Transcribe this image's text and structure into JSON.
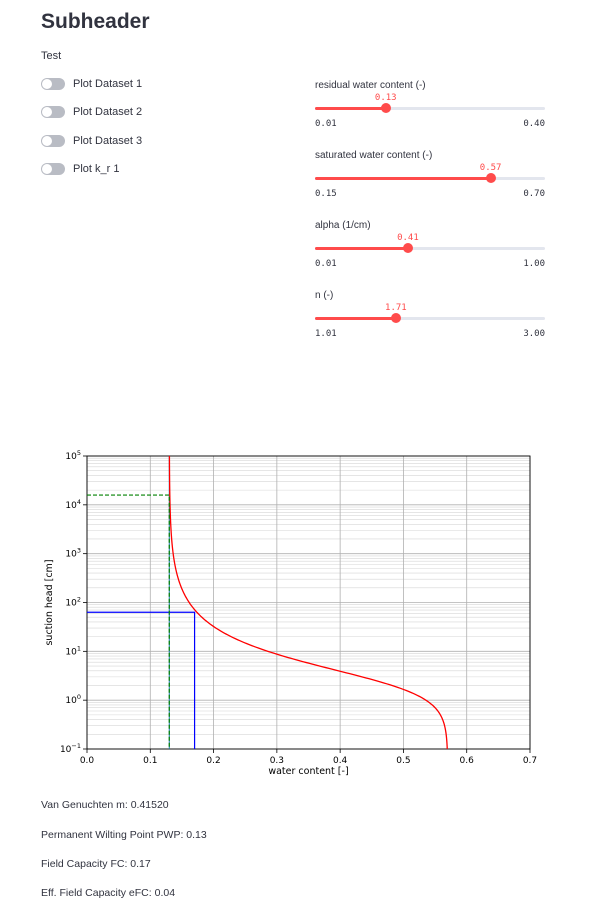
{
  "page": {
    "subheader": "Subheader",
    "caption": "Test"
  },
  "toggles": [
    {
      "label": "Plot Dataset 1",
      "on": false
    },
    {
      "label": "Plot Dataset 2",
      "on": false
    },
    {
      "label": "Plot Dataset 3",
      "on": false
    },
    {
      "label": "Plot k_r 1",
      "on": false
    }
  ],
  "sliders": [
    {
      "label": "residual water content (-)",
      "value": 0.13,
      "value_text": "0.13",
      "min": 0.01,
      "max": 0.4,
      "min_text": "0.01",
      "max_text": "0.40"
    },
    {
      "label": "saturated water content (-)",
      "value": 0.57,
      "value_text": "0.57",
      "min": 0.15,
      "max": 0.7,
      "min_text": "0.15",
      "max_text": "0.70"
    },
    {
      "label": "alpha (1/cm)",
      "value": 0.41,
      "value_text": "0.41",
      "min": 0.01,
      "max": 1.0,
      "min_text": "0.01",
      "max_text": "1.00"
    },
    {
      "label": "n (-)",
      "value": 1.71,
      "value_text": "1.71",
      "min": 1.01,
      "max": 3.0,
      "min_text": "1.01",
      "max_text": "3.00"
    }
  ],
  "chart_data": {
    "type": "line",
    "xlabel": "water content [-]",
    "ylabel": "suction head [cm]",
    "xlim": [
      0.0,
      0.7
    ],
    "ylim": [
      0.1,
      100000
    ],
    "yscale": "log",
    "grid": true,
    "x_ticks": [
      "0.0",
      "0.1",
      "0.2",
      "0.3",
      "0.4",
      "0.5",
      "0.6",
      "0.7"
    ],
    "y_ticks": [
      {
        "base": "10",
        "exp": "−1"
      },
      {
        "base": "10",
        "exp": "0"
      },
      {
        "base": "10",
        "exp": "1"
      },
      {
        "base": "10",
        "exp": "2"
      },
      {
        "base": "10",
        "exp": "3"
      },
      {
        "base": "10",
        "exp": "4"
      },
      {
        "base": "10",
        "exp": "5"
      }
    ],
    "series": [
      {
        "curve": "van-genuchten",
        "color": "#ff0000",
        "theta_r": 0.13,
        "theta_s": 0.57,
        "alpha": 0.41,
        "n": 1.71
      },
      {
        "curve": "field-capacity-marker",
        "color": "#0000ff",
        "x": 0.17,
        "h": 63.1
      },
      {
        "curve": "wilting-point-marker",
        "color": "#008000",
        "x": 0.13,
        "h": 15849
      }
    ],
    "residual_line": {
      "x": 0.13,
      "color": "#1f77b4"
    }
  },
  "results": {
    "m": "Van Genuchten m: 0.41520",
    "pwp": "Permanent Wilting Point PWP: 0.13",
    "fc": "Field Capacity FC: 0.17",
    "efc": "Eff. Field Capacity eFC: 0.04"
  }
}
